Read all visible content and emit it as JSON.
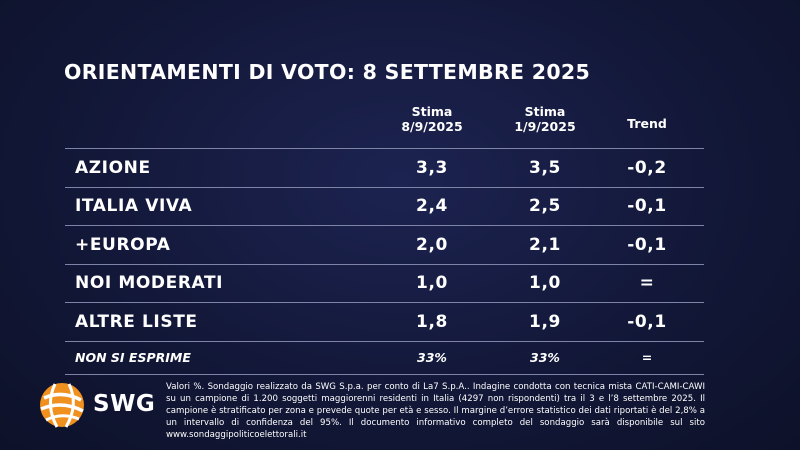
{
  "header": {
    "title": "ORIENTAMENTI DI VOTO: 8 SETTEMBRE 2025"
  },
  "table": {
    "headers": [
      [
        "Stima",
        "8/9/2025"
      ],
      [
        "Stima",
        "1/9/2025"
      ],
      [
        "Trend"
      ]
    ],
    "rows": [
      [
        "AZIONE",
        "3,3",
        "3,5",
        "-0,2"
      ],
      [
        "ITALIA VIVA",
        "2,4",
        "2,5",
        "-0,1"
      ],
      [
        "+EUROPA",
        "2,0",
        "2,1",
        "-0,1"
      ],
      [
        "NOI MODERATI",
        "1,0",
        "1,0",
        "="
      ],
      [
        "ALTRE LISTE",
        "1,8",
        "1,9",
        "-0,1"
      ],
      [
        "NON SI ESPRIME",
        "33%",
        "33%",
        "="
      ]
    ]
  },
  "footnote": "Valori %. Sondaggio realizzato da SWG S.p.a. per conto di La7 S.p.A.. Indagine condotta con tecnica mista CATI-CAMI-CAWI su un campione di 1.200 soggetti maggiorenni residenti in Italia (4297 non rispondenti) tra il 3 e l’8 settembre 2025. Il campione è stratificato per zona e prevede quote per età e sesso. Il margine d’errore statistico dei dati riportati è del 2,8% a un intervallo di confidenza del 95%. Il documento informativo completo del sondaggio sarà disponibile sul sito www.sondaggipoliticoelettorali.it",
  "logo": "SWG"
}
